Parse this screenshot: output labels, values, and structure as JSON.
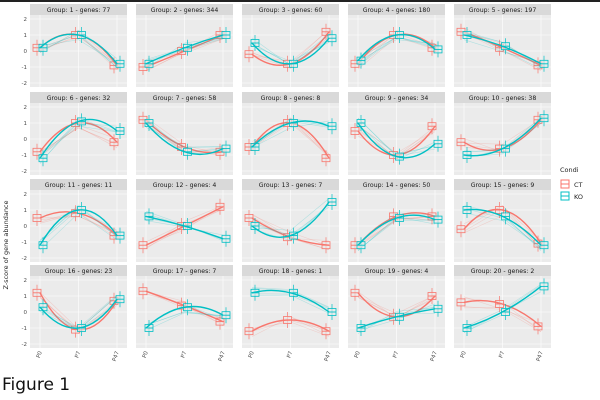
{
  "chart_data": {
    "type": "line",
    "title": "Figure 1",
    "ylabel": "Z-score of gene abundance",
    "xlabel": "",
    "categories": [
      "P0",
      "P7",
      "P47"
    ],
    "ylim": [
      -2,
      2
    ],
    "yticks": [
      -2,
      -1,
      0,
      1,
      2
    ],
    "legend": {
      "title": "Condi",
      "entries": [
        {
          "label": "CT",
          "color": "#F8766D"
        },
        {
          "label": "KO",
          "color": "#00BFC4"
        }
      ],
      "placement": "right"
    },
    "panels": [
      {
        "title": "Group: 1 - genes: 77",
        "series": [
          {
            "name": "CT",
            "values": [
              0.2,
              1.0,
              -0.9
            ]
          },
          {
            "name": "KO",
            "values": [
              0.2,
              1.0,
              -0.8
            ]
          }
        ]
      },
      {
        "title": "Group: 2 - genes: 344",
        "series": [
          {
            "name": "CT",
            "values": [
              -1.0,
              0.0,
              1.0
            ]
          },
          {
            "name": "KO",
            "values": [
              -0.8,
              0.2,
              1.0
            ]
          }
        ]
      },
      {
        "title": "Group: 3 - genes: 60",
        "series": [
          {
            "name": "CT",
            "values": [
              -0.2,
              -0.8,
              1.2
            ]
          },
          {
            "name": "KO",
            "values": [
              0.5,
              -0.8,
              0.8
            ]
          }
        ]
      },
      {
        "title": "Group: 4 - genes: 180",
        "series": [
          {
            "name": "CT",
            "values": [
              -0.8,
              1.0,
              0.2
            ]
          },
          {
            "name": "KO",
            "values": [
              -0.6,
              1.0,
              0.1
            ]
          }
        ]
      },
      {
        "title": "Group: 5 - genes: 197",
        "series": [
          {
            "name": "CT",
            "values": [
              1.2,
              0.2,
              -0.9
            ]
          },
          {
            "name": "KO",
            "values": [
              1.0,
              0.3,
              -0.8
            ]
          }
        ]
      },
      {
        "title": "Group: 6 - genes: 32",
        "series": [
          {
            "name": "CT",
            "values": [
              -0.8,
              1.0,
              -0.2
            ]
          },
          {
            "name": "KO",
            "values": [
              -1.2,
              1.1,
              0.5
            ]
          }
        ]
      },
      {
        "title": "Group: 7 - genes: 58",
        "series": [
          {
            "name": "CT",
            "values": [
              1.2,
              -0.5,
              -0.8
            ]
          },
          {
            "name": "KO",
            "values": [
              1.0,
              -0.8,
              -0.6
            ]
          }
        ]
      },
      {
        "title": "Group: 8 - genes: 8",
        "series": [
          {
            "name": "CT",
            "values": [
              -0.5,
              1.0,
              -1.2
            ]
          },
          {
            "name": "KO",
            "values": [
              -0.5,
              1.0,
              0.8
            ]
          }
        ]
      },
      {
        "title": "Group: 9 - genes: 34",
        "series": [
          {
            "name": "CT",
            "values": [
              0.5,
              -1.0,
              0.8
            ]
          },
          {
            "name": "KO",
            "values": [
              1.0,
              -1.1,
              -0.3
            ]
          }
        ]
      },
      {
        "title": "Group: 10 - genes: 38",
        "series": [
          {
            "name": "CT",
            "values": [
              -0.2,
              -0.6,
              1.2
            ]
          },
          {
            "name": "KO",
            "values": [
              -1.0,
              -0.6,
              1.3
            ]
          }
        ]
      },
      {
        "title": "Group: 11 - genes: 11",
        "series": [
          {
            "name": "CT",
            "values": [
              0.5,
              0.8,
              -0.6
            ]
          },
          {
            "name": "KO",
            "values": [
              -1.2,
              1.0,
              -0.6
            ]
          }
        ]
      },
      {
        "title": "Group: 12 - genes: 4",
        "series": [
          {
            "name": "CT",
            "values": [
              -1.2,
              0.0,
              1.2
            ]
          },
          {
            "name": "KO",
            "values": [
              0.6,
              0.0,
              -0.8
            ]
          }
        ]
      },
      {
        "title": "Group: 13 - genes: 7",
        "series": [
          {
            "name": "CT",
            "values": [
              0.5,
              -0.7,
              -1.2
            ]
          },
          {
            "name": "KO",
            "values": [
              0.0,
              -0.6,
              1.5
            ]
          }
        ]
      },
      {
        "title": "Group: 14 - genes: 50",
        "series": [
          {
            "name": "CT",
            "values": [
              -1.2,
              0.6,
              0.6
            ]
          },
          {
            "name": "KO",
            "values": [
              -1.2,
              0.5,
              0.4
            ]
          }
        ]
      },
      {
        "title": "Group: 15 - genes: 9",
        "series": [
          {
            "name": "CT",
            "values": [
              -0.2,
              1.0,
              -1.1
            ]
          },
          {
            "name": "KO",
            "values": [
              1.0,
              0.6,
              -1.2
            ]
          }
        ]
      },
      {
        "title": "Group: 16 - genes: 23",
        "series": [
          {
            "name": "CT",
            "values": [
              1.2,
              -1.1,
              0.7
            ]
          },
          {
            "name": "KO",
            "values": [
              0.3,
              -1.0,
              0.8
            ]
          }
        ]
      },
      {
        "title": "Group: 17 - genes: 7",
        "series": [
          {
            "name": "CT",
            "values": [
              1.3,
              0.4,
              -0.6
            ]
          },
          {
            "name": "KO",
            "values": [
              -1.0,
              0.3,
              -0.2
            ]
          }
        ]
      },
      {
        "title": "Group: 18 - genes: 1",
        "series": [
          {
            "name": "CT",
            "values": [
              -1.2,
              -0.5,
              -1.2
            ]
          },
          {
            "name": "KO",
            "values": [
              1.2,
              1.2,
              0.0
            ]
          }
        ]
      },
      {
        "title": "Group: 19 - genes: 4",
        "series": [
          {
            "name": "CT",
            "values": [
              1.2,
              -0.3,
              1.0
            ]
          },
          {
            "name": "KO",
            "values": [
              -1.0,
              -0.3,
              0.2
            ]
          }
        ]
      },
      {
        "title": "Group: 20 - genes: 2",
        "series": [
          {
            "name": "CT",
            "values": [
              0.6,
              0.5,
              -0.9
            ]
          },
          {
            "name": "KO",
            "values": [
              -1.0,
              0.0,
              1.6
            ]
          }
        ]
      }
    ]
  }
}
